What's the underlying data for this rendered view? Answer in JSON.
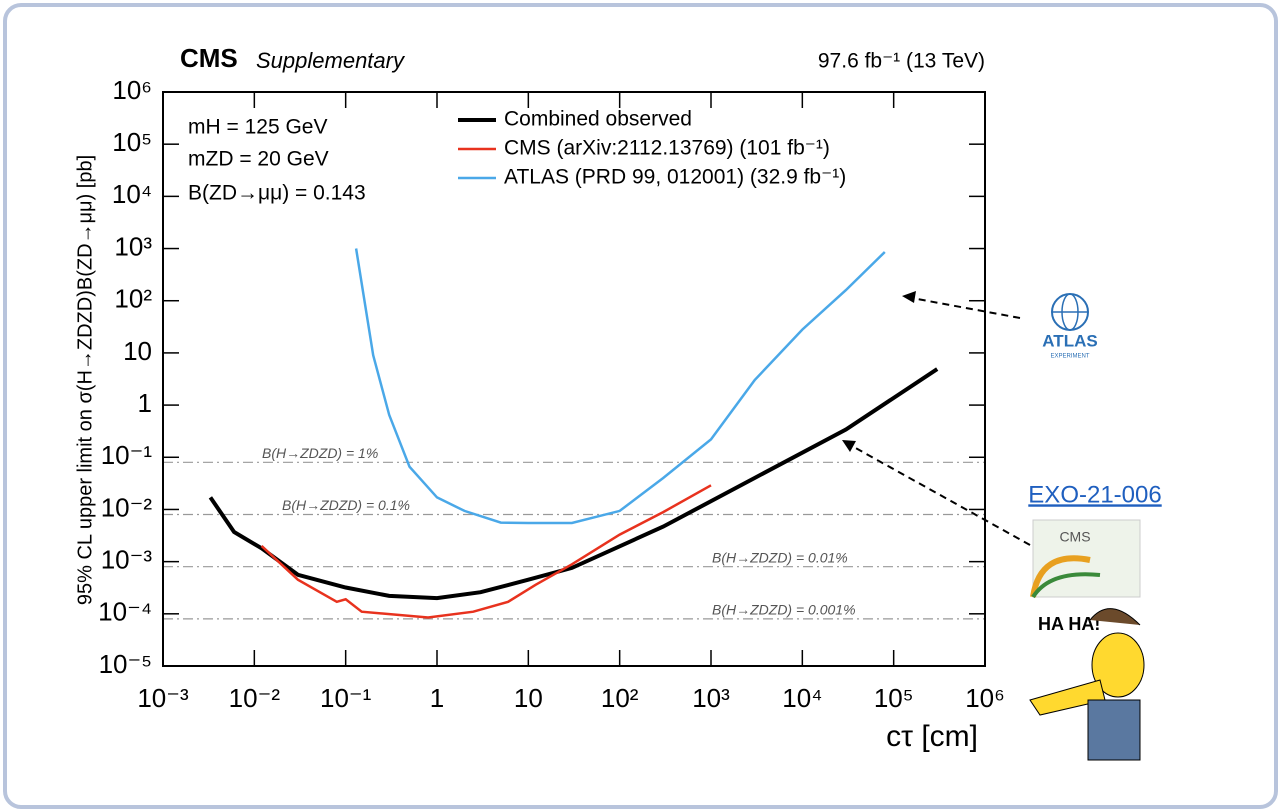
{
  "chart_data": {
    "type": "line",
    "title": "CMS",
    "subtitle": "Supplementary",
    "luminosity": "97.6 fb⁻¹ (13 TeV)",
    "annotations": [
      "mH = 125 GeV",
      "mZD = 20 GeV",
      "B(ZD→μμ) = 0.143"
    ],
    "ylabel": "95% CL upper limit on σ(H→ZDZD)B(ZD→μμ) [pb]",
    "xlabel": "cτ [cm]",
    "xlog": true,
    "ylog": true,
    "xlim": [
      0.001,
      1000000
    ],
    "ylim": [
      1e-05,
      1000000
    ],
    "xticks": [
      {
        "value": 0.001,
        "label": "10⁻³"
      },
      {
        "value": 0.01,
        "label": "10⁻²"
      },
      {
        "value": 0.1,
        "label": "10⁻¹"
      },
      1,
      10,
      {
        "value": 100,
        "label": "10²"
      },
      {
        "value": 1000,
        "label": "10³"
      },
      {
        "value": 10000,
        "label": "10⁴"
      },
      {
        "value": 100000,
        "label": "10⁵"
      },
      {
        "value": 1000000,
        "label": "10⁶"
      }
    ],
    "yticks": [
      {
        "value": 1e-05,
        "label": "10⁻⁵"
      },
      {
        "value": 0.0001,
        "label": "10⁻⁴"
      },
      {
        "value": 0.001,
        "label": "10⁻³"
      },
      {
        "value": 0.01,
        "label": "10⁻²"
      },
      {
        "value": 0.1,
        "label": "10⁻¹"
      },
      1,
      10,
      {
        "value": 100,
        "label": "10²"
      },
      {
        "value": 1000,
        "label": "10³"
      },
      {
        "value": 10000,
        "label": "10⁴"
      },
      {
        "value": 100000,
        "label": "10⁵"
      },
      {
        "value": 1000000,
        "label": "10⁶"
      }
    ],
    "reference_lines": [
      {
        "value": 0.08,
        "label": "B(H→ZDZD) = 1%"
      },
      {
        "value": 0.008,
        "label": "B(H→ZDZD) = 0.1%"
      },
      {
        "value": 0.0008,
        "label": "B(H→ZDZD) = 0.01%"
      },
      {
        "value": 8e-05,
        "label": "B(H→ZDZD) = 0.001%"
      }
    ],
    "series": [
      {
        "name": "Combined observed",
        "color": "#000000",
        "x": [
          0.0033,
          0.006,
          0.012,
          0.03,
          0.1,
          0.3,
          1,
          3,
          10,
          30,
          300,
          3000,
          30000,
          300000
        ],
        "values": [
          0.017,
          0.0037,
          0.0018,
          0.00056,
          0.00032,
          0.00022,
          0.0002,
          0.00026,
          0.00045,
          0.00076,
          0.0047,
          0.04,
          0.34,
          4.9
        ]
      },
      {
        "name": "CMS (arXiv:2112.13769) (101 fb⁻¹)",
        "color": "#e8321e",
        "x": [
          0.012,
          0.03,
          0.08,
          0.1,
          0.15,
          0.8,
          2.5,
          6,
          12,
          30,
          100,
          300,
          1000
        ],
        "values": [
          0.002,
          0.00045,
          0.00017,
          0.00019,
          0.00011,
          8.5e-05,
          0.00011,
          0.00017,
          0.00036,
          0.00089,
          0.0033,
          0.0089,
          0.029
        ]
      },
      {
        "name": "ATLAS (PRD 99, 012001) (32.9 fb⁻¹)",
        "color": "#4aa8e8",
        "x": [
          0.13,
          0.2,
          0.3,
          0.5,
          1,
          2,
          5,
          10,
          30,
          100,
          300,
          1000,
          3000,
          10000,
          30000,
          80000
        ],
        "values": [
          1000,
          9,
          0.65,
          0.066,
          0.017,
          0.0094,
          0.0056,
          0.0055,
          0.0055,
          0.0094,
          0.04,
          0.22,
          3,
          28,
          160,
          860
        ]
      }
    ]
  },
  "slide": {
    "link": "EXO-21-006",
    "atlas_logo": [
      "ATLAS",
      "EXPERIMENT"
    ],
    "cms_logo": "CMS",
    "cartoon_text": "HA HA!"
  }
}
